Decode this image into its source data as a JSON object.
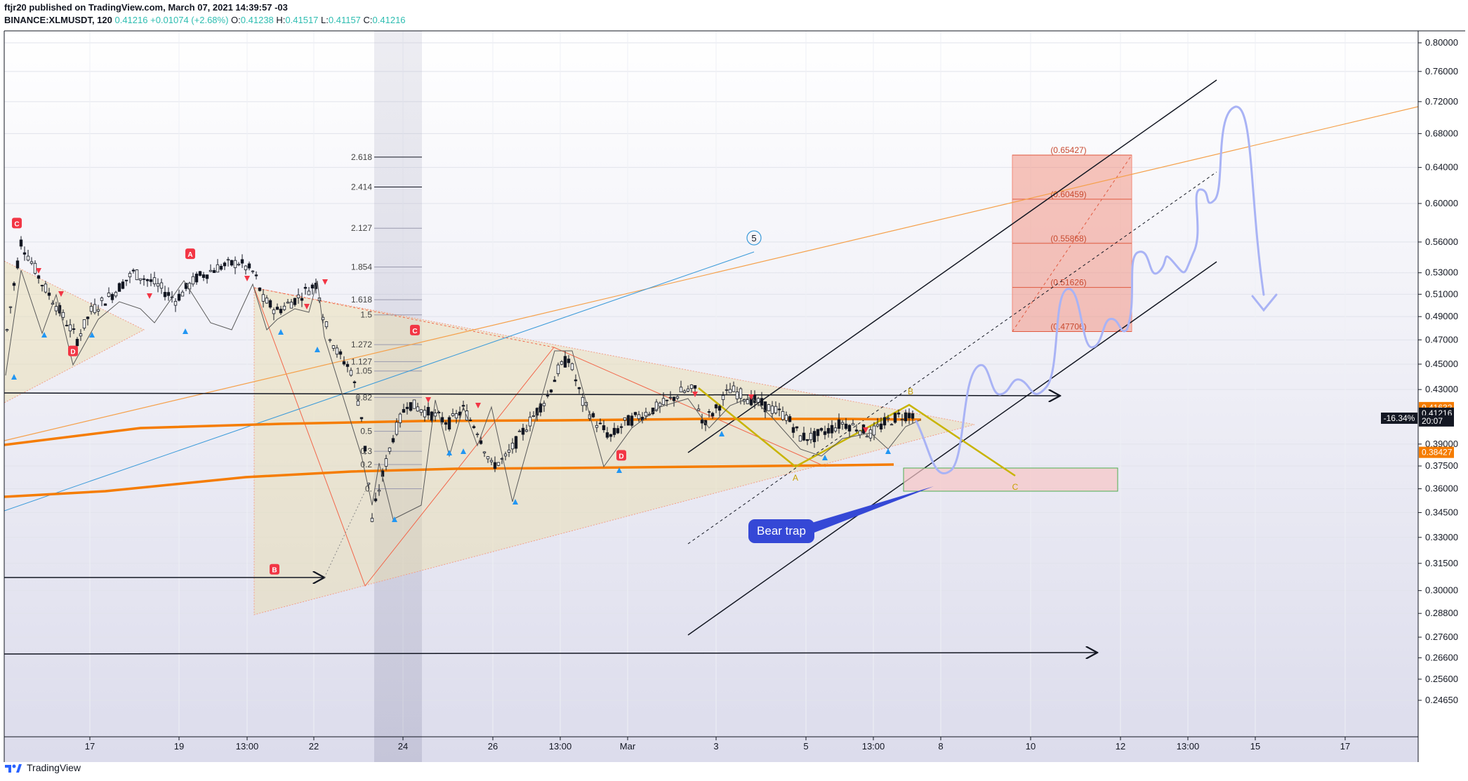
{
  "header": {
    "published": "ftjr20 published on TradingView.com, March 07, 2021 14:39:57 -03",
    "symbol": "BINANCE:XLMUSDT, 120",
    "last": "0.41216",
    "change": "+0.01074 (+2.68%)",
    "o_label": "O:",
    "o_value": "0.41238",
    "h_label": "H:",
    "h_value": "0.41517",
    "l_label": "L:",
    "l_value": "0.41157",
    "c_label": "C:",
    "c_value": "0.41216"
  },
  "footer": {
    "brand": "TradingView"
  },
  "colors": {
    "background": "#ffffff",
    "up_candle": "#ffffff",
    "down_candle": "#131722",
    "orange_ma": "#f57c00",
    "channel": "#131722",
    "target_box": "#f28b7a",
    "blue_path": "#a9b3f5",
    "bear_trap": "#3548d6",
    "yellow_pattern": "#c8b400"
  },
  "chart_data": {
    "type": "line",
    "price_axis": {
      "scale": "log",
      "ticks": [
        "0.80000",
        "0.76000",
        "0.72000",
        "0.68000",
        "0.64000",
        "0.60000",
        "0.56000",
        "0.53000",
        "0.51000",
        "0.49000",
        "0.47000",
        "0.45000",
        "0.43000",
        "0.39000",
        "0.37500",
        "0.36000",
        "0.34500",
        "0.33000",
        "0.31500",
        "0.30000",
        "0.28800",
        "0.27600",
        "0.26600",
        "0.25600",
        "0.24650"
      ],
      "ylim": [
        0.241,
        0.825
      ]
    },
    "time_axis": {
      "ticks": [
        "17",
        "19",
        "13:00",
        "22",
        "24",
        "26",
        "13:00",
        "Mar",
        "3",
        "5",
        "13:00",
        "8",
        "10",
        "12",
        "13:00",
        "15",
        "17"
      ]
    },
    "price_labels": [
      {
        "value": "0.41632",
        "price": 0.41632,
        "color": "#f57c00"
      },
      {
        "value": "0.41216",
        "price": 0.41216,
        "color": "#131722"
      },
      {
        "value": "20:07",
        "price": 0.4065,
        "color": "#131722"
      },
      {
        "value": "0.38427",
        "price": 0.38427,
        "color": "#f57c00"
      }
    ],
    "percent_label": "-16.34%",
    "fib_levels": [
      {
        "label": "2.618",
        "price": 0.652
      },
      {
        "label": "2.414",
        "price": 0.618
      },
      {
        "label": "2.127",
        "price": 0.574
      },
      {
        "label": "1.854",
        "price": 0.5355
      },
      {
        "label": "1.618",
        "price": 0.505
      },
      {
        "label": "1.5",
        "price": 0.4915
      },
      {
        "label": "1.272",
        "price": 0.466
      },
      {
        "label": "1.127",
        "price": 0.452
      },
      {
        "label": "1.05",
        "price": 0.4445
      },
      {
        "label": "0.82",
        "price": 0.424
      },
      {
        "label": "0.5",
        "price": 0.399
      },
      {
        "label": "0.3",
        "price": 0.385
      },
      {
        "label": "0.2",
        "price": 0.376
      },
      {
        "label": "0.",
        "price": 0.36
      }
    ],
    "target_levels": [
      "(0.65427)",
      "(0.60459)",
      "(0.55868)",
      "(0.51626)",
      "(0.47706)"
    ],
    "target_prices": [
      0.65427,
      0.60459,
      0.55868,
      0.51626,
      0.47706
    ],
    "pattern_labels": [
      {
        "text": "C",
        "kind": "red",
        "x": 24,
        "price": 0.579
      },
      {
        "text": "D",
        "kind": "red",
        "x": 104,
        "price": 0.4605
      },
      {
        "text": "A",
        "kind": "red",
        "x": 271,
        "price": 0.548
      },
      {
        "text": "B",
        "kind": "red",
        "x": 391,
        "price": 0.3115
      },
      {
        "text": "C",
        "kind": "red",
        "x": 591,
        "price": 0.478
      },
      {
        "text": "D",
        "kind": "red",
        "x": 885,
        "price": 0.382
      }
    ],
    "wave_label": "5",
    "annotation": "Bear trap",
    "abc_labels": [
      "A",
      "B",
      "C"
    ]
  }
}
